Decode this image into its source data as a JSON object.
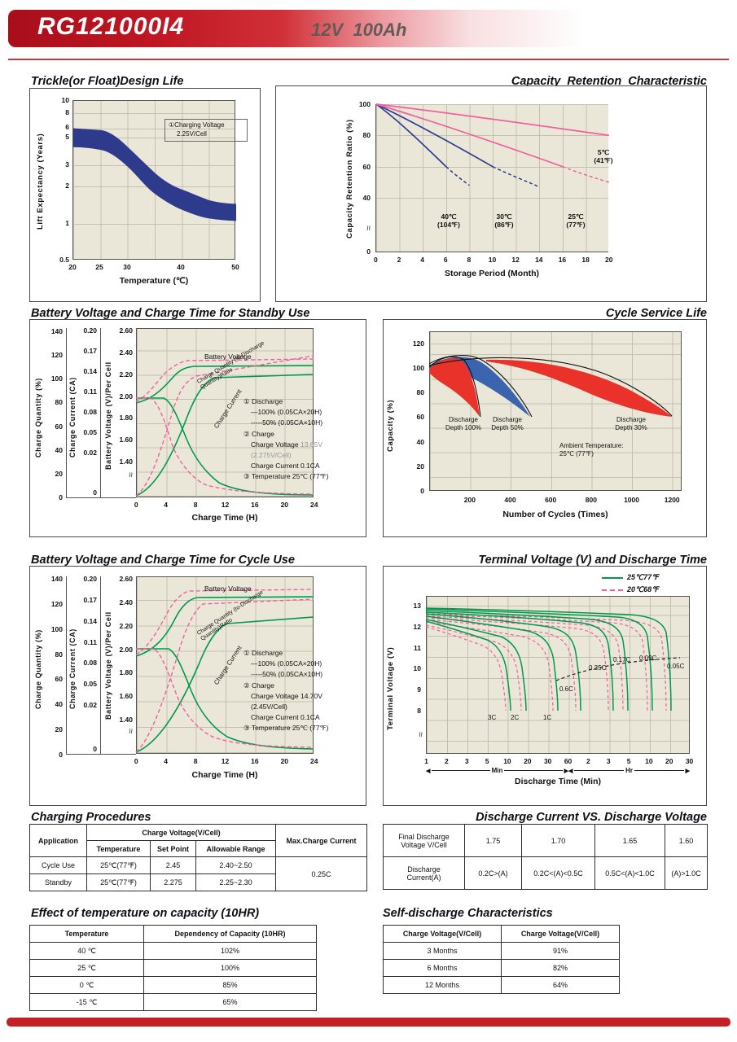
{
  "page": {
    "model": "RG121000I4",
    "rating": "12V  100Ah"
  },
  "sections": {
    "trickle": "Trickle(or Float)Design Life",
    "retention": "Capacity  Retention  Characteristic",
    "standby": "Battery Voltage and Charge Time for Standby Use",
    "cycle_life": "Cycle Service Life",
    "cycle_charge": "Battery Voltage and Charge Time for Cycle Use",
    "terminal": "Terminal Voltage (V) and Discharge Time",
    "charging": "Charging Procedures",
    "discharge_cv": "Discharge Current VS. Discharge Voltage",
    "temp_capacity": "Effect of temperature on capacity (10HR)",
    "self_discharge": "Self-discharge Characteristics"
  },
  "chart_data": [
    {
      "id": "trickle_float_design_life",
      "type": "area",
      "xlabel": "Temperature (℃)",
      "ylabel": "Lift Expectancy (Years)",
      "xticks": [
        "20",
        "25",
        "30",
        "40",
        "50"
      ],
      "yticks": [
        "10",
        "8",
        "6",
        "5",
        "3",
        "2",
        "1",
        "0.5"
      ],
      "annotation": [
        "①Charging Voltage",
        "2.25V/Cell"
      ],
      "band_series": {
        "name": "Design life band at 2.25V/Cell",
        "x_degC": [
          20,
          25,
          30,
          35,
          40,
          45,
          50
        ],
        "upper_years": [
          6.0,
          5.8,
          4.2,
          2.6,
          1.9,
          1.55,
          1.45
        ],
        "lower_years": [
          4.2,
          4.0,
          2.9,
          1.75,
          1.3,
          1.1,
          1.05
        ]
      }
    },
    {
      "id": "capacity_retention_characteristic",
      "type": "line",
      "xlabel": "Storage Period (Month)",
      "ylabel": "Capacity Retention Ratio (%)",
      "xticks": [
        "0",
        "2",
        "4",
        "6",
        "8",
        "10",
        "12",
        "14",
        "16",
        "18",
        "20"
      ],
      "yticks": [
        "100",
        "80",
        "60",
        "40"
      ],
      "y_zero": "0",
      "series": [
        {
          "label": [
            "40℃",
            "(104℉)"
          ],
          "color": "#2b3990",
          "solid_months": [
            [
              0,
              100
            ],
            [
              6,
              60
            ]
          ],
          "dashed_months": [
            [
              6,
              60
            ],
            [
              8,
              48
            ]
          ]
        },
        {
          "label": [
            "30℃",
            "(86℉)"
          ],
          "color": "#2b3990",
          "solid_months": [
            [
              0,
              100
            ],
            [
              10,
              60
            ]
          ],
          "dashed_months": [
            [
              10,
              60
            ],
            [
              14,
              47
            ]
          ]
        },
        {
          "label": [
            "25℃",
            "(77℉)"
          ],
          "color": "#f0609e",
          "solid_months": [
            [
              0,
              100
            ],
            [
              16,
              60
            ]
          ],
          "dashed_months": [
            [
              16,
              60
            ],
            [
              20,
              50
            ]
          ]
        },
        {
          "label": [
            "5℃",
            "(41℉)"
          ],
          "color": "#f0609e",
          "solid_months": [
            [
              0,
              100
            ],
            [
              20,
              80
            ]
          ],
          "dashed_months": []
        }
      ]
    },
    {
      "id": "standby_use_charge_characteristics",
      "type": "line",
      "xlabel": "Charge Time (H)",
      "xticks": [
        "0",
        "4",
        "8",
        "12",
        "16",
        "20",
        "24"
      ],
      "axes": {
        "charge_quantity": {
          "label": "Charge Quantity (%)",
          "ticks": [
            "140",
            "120",
            "100",
            "80",
            "60",
            "40",
            "20",
            "0"
          ]
        },
        "charge_current": {
          "label": "Charge Current (CA)",
          "ticks": [
            "0.20",
            "0.17",
            "0.14",
            "0.11",
            "0.08",
            "0.05",
            "0.02"
          ],
          "zero": "0"
        },
        "battery_voltage": {
          "label": "Battery Voltage (V)/Per Cell",
          "ticks": [
            "2.60",
            "2.40",
            "2.20",
            "2.00",
            "1.80",
            "1.60",
            "1.40"
          ]
        }
      },
      "curve_labels": {
        "battery_voltage": "Battery Voltage",
        "ratio": "Charge Quantity (to-Discharge Quantity)Ratio",
        "charge_current": "Charge Current"
      },
      "notes": {
        "l1": "① Discharge",
        "l2": "—100% (0.05CA×20H)",
        "l3": "-----50% (0.05CA×10H)",
        "l4": "② Charge",
        "l5a": "Charge Voltage",
        "l5b": "13.65V",
        "l6": "(2.275V/Cell)",
        "l7": "Charge Current 0.1CA",
        "l8": "③ Temperature 25℃ (77℉)"
      }
    },
    {
      "id": "cycle_service_life",
      "type": "area",
      "xlabel": "Number of Cycles (Times)",
      "ylabel": "Capacity (%)",
      "xticks": [
        "200",
        "400",
        "600",
        "800",
        "1000",
        "1200"
      ],
      "yticks": [
        "120",
        "100",
        "80",
        "60",
        "40",
        "20",
        "0"
      ],
      "series": [
        {
          "label": [
            "Discharge",
            "Depth 100%"
          ],
          "color": "#e8322a",
          "end_of_life_cycles": 250
        },
        {
          "label": [
            "Discharge",
            "Depth 50%"
          ],
          "color": "#3a64ad",
          "end_of_life_cycles": 500
        },
        {
          "label": [
            "Discharge",
            "Depth 30%"
          ],
          "color": "#e8322a",
          "end_of_life_cycles": 1200
        }
      ],
      "annotation": [
        "Ambient Temperature:",
        "25℃ (77℉)"
      ]
    },
    {
      "id": "cycle_use_charge_characteristics",
      "type": "line",
      "xlabel": "Charge Time (H)",
      "xticks": [
        "0",
        "4",
        "8",
        "12",
        "16",
        "20",
        "24"
      ],
      "axes": {
        "charge_quantity": {
          "label": "Charge Quantity (%)",
          "ticks": [
            "140",
            "120",
            "100",
            "80",
            "60",
            "40",
            "20",
            "0"
          ]
        },
        "charge_current": {
          "label": "Charge Current (CA)",
          "ticks": [
            "0.20",
            "0.17",
            "0.14",
            "0.11",
            "0.08",
            "0.05",
            "0.02"
          ],
          "zero": "0"
        },
        "battery_voltage": {
          "label": "Battery Voltage (V)/Per Cell",
          "ticks": [
            "2.60",
            "2.40",
            "2.20",
            "2.00",
            "1.80",
            "1.60",
            "1.40"
          ]
        }
      },
      "curve_labels": {
        "battery_voltage": "Battery Voltage",
        "ratio": "Charge Quantity (to-Discharge Quantity)Ratio",
        "charge_current": "Charge Current"
      },
      "notes": {
        "l1": "① Discharge",
        "l2": "—100% (0.05CA×20H)",
        "l3": "-----50% (0.05CA×10H)",
        "l4": "② Charge",
        "l5a": "Charge Voltage",
        "l5b": "14.70V",
        "l6": "(2.45V/Cell)",
        "l7": "Charge Current 0.1CA",
        "l8": "③ Temperature 25℃ (77℉)"
      }
    },
    {
      "id": "terminal_voltage_and_discharge_time",
      "type": "line",
      "xlabel": "Discharge Time (Min)",
      "ylabel": "Terminal Voltage (V)",
      "yticks": [
        "13",
        "12",
        "11",
        "10",
        "9",
        "8"
      ],
      "xticks_min": [
        "1",
        "2",
        "3",
        "5",
        "10",
        "20",
        "30",
        "60"
      ],
      "xticks_hr": [
        "2",
        "3",
        "5",
        "10",
        "20",
        "30"
      ],
      "sections": {
        "min": "Min",
        "hr": "Hr"
      },
      "legend": [
        {
          "label": "25℃77℉",
          "color": "#00994d",
          "line": "solid"
        },
        {
          "label": "20℃68℉",
          "color": "#f0609e",
          "line": "dashed"
        }
      ],
      "rate_labels": [
        "3C",
        "2C",
        "1C",
        "0.6C",
        "0.25C",
        "0.17C",
        "0.09C",
        "0.05C"
      ]
    }
  ],
  "tables": {
    "charging_procedures": {
      "col_application": "Application",
      "col_charge_voltage": "Charge Voltage(V/Cell)",
      "col_temperature": "Temperature",
      "col_set_point": "Set Point",
      "col_allowable_range": "Allowable Range",
      "col_max_charge_current": "Max.Charge Current",
      "rows": [
        {
          "application": "Cycle Use",
          "temperature": "25℃(77℉)",
          "set_point": "2.45",
          "allowable_range": "2.40~2.50"
        },
        {
          "application": "Standby",
          "temperature": "25℃(77℉)",
          "set_point": "2.275",
          "allowable_range": "2.25~2.30"
        }
      ],
      "max_charge_current": "0.25C"
    },
    "discharge_current_vs_voltage": {
      "row1_label": [
        "Final Discharge",
        "Voltage V/Cell"
      ],
      "row1_values": [
        "1.75",
        "1.70",
        "1.65",
        "1.60"
      ],
      "row2_label": [
        "Discharge",
        "Current(A)"
      ],
      "row2_values": [
        "0.2C>(A)",
        "0.2C<(A)<0.5C",
        "0.5C<(A)<1.0C",
        "(A)>1.0C"
      ]
    },
    "effect_of_temperature": {
      "headers": [
        "Temperature",
        "Dependency of Capacity (10HR)"
      ],
      "rows": [
        [
          "40 ℃",
          "102%"
        ],
        [
          "25 ℃",
          "100%"
        ],
        [
          "0 ℃",
          "85%"
        ],
        [
          "-15 ℃",
          "65%"
        ]
      ]
    },
    "self_discharge": {
      "headers": [
        "Charge Voltage(V/Cell)",
        "Charge Voltage(V/Cell)"
      ],
      "rows": [
        [
          "3 Months",
          "91%"
        ],
        [
          "6 Months",
          "82%"
        ],
        [
          "12 Months",
          "64%"
        ]
      ]
    }
  }
}
